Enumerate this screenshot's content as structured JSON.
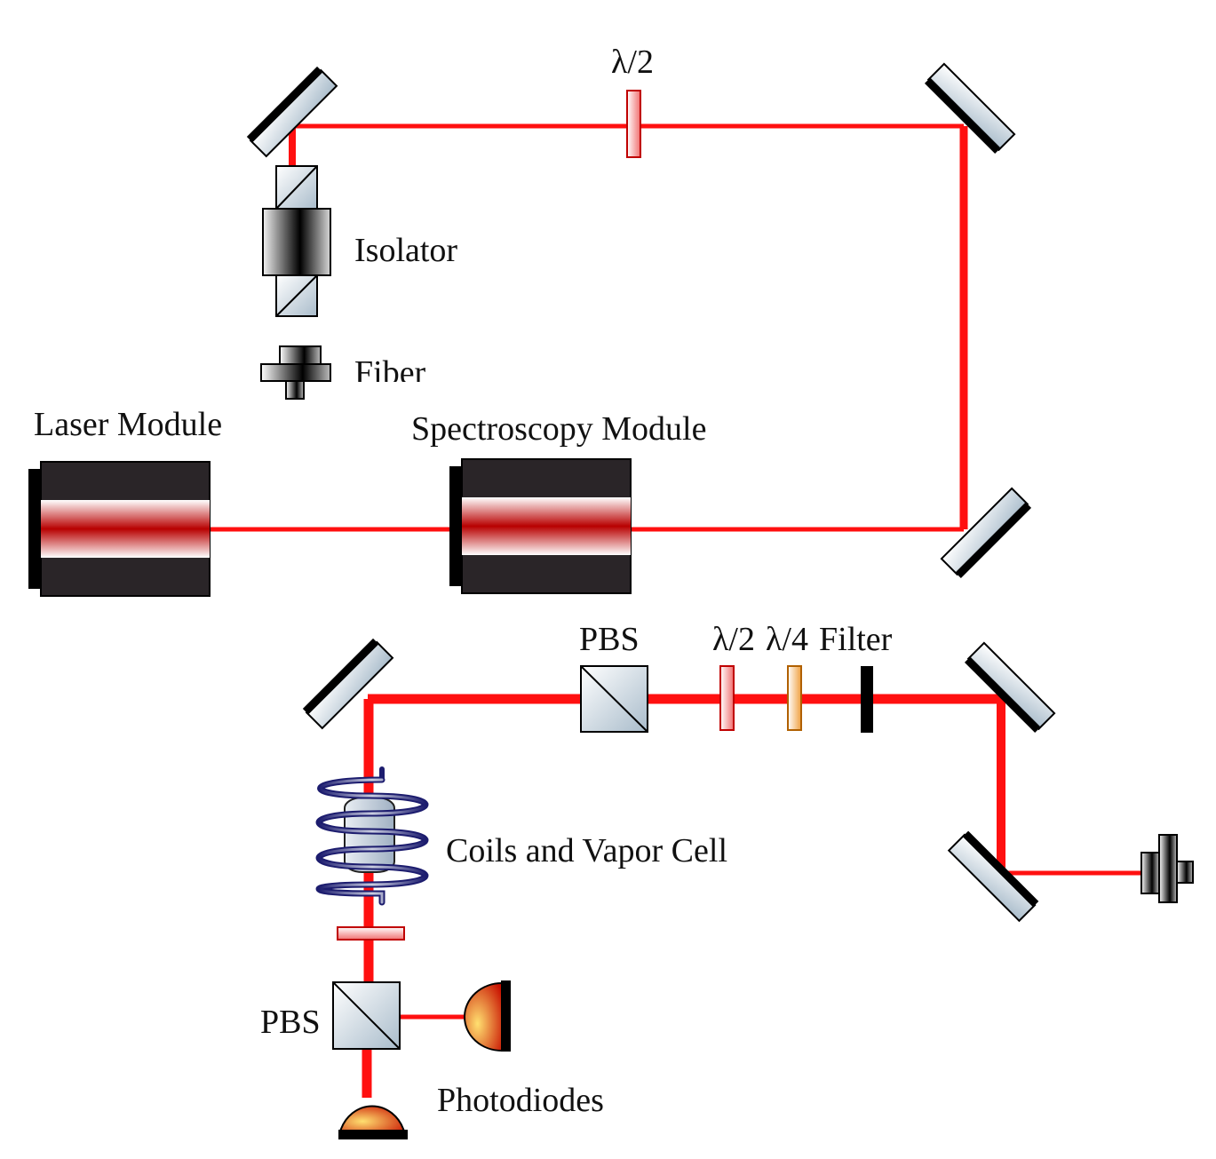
{
  "labels": {
    "half_wave_top": "λ/2",
    "isolator": "Isolator",
    "fiber": "Fiber",
    "laser_module": "Laser Module",
    "spectroscopy_module": "Spectroscopy Module",
    "pbs_top": "PBS",
    "half_wave_bottom": "λ/2",
    "quarter_wave": "λ/4",
    "filter": "Filter",
    "coils_vapor_cell": "Coils and Vapor Cell",
    "pbs_bottom": "PBS",
    "photodiodes": "Photodiodes"
  },
  "colors": {
    "beam": "#ff1010",
    "module_body": "#2a2528",
    "mirror_glass": "#c9d6df",
    "coil": "#2a2a80",
    "waveplate_half": "#f6a0a0",
    "waveplate_quarter": "#f6c37a",
    "photodiode": "#e0401a"
  }
}
